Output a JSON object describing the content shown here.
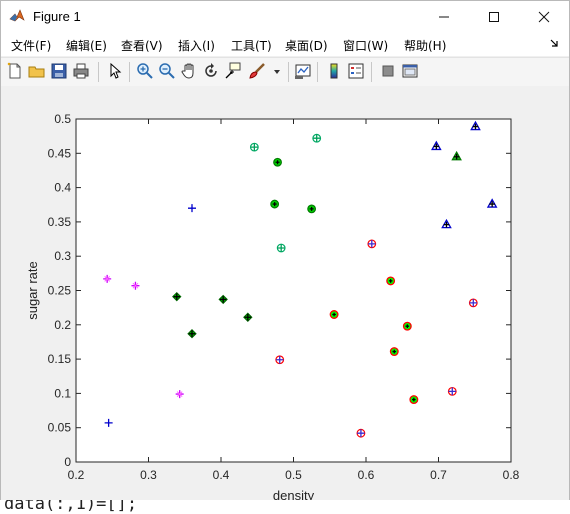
{
  "window": {
    "title": "Figure 1",
    "controls": {
      "minimize": "–",
      "maximize": "☐",
      "close": "✕"
    }
  },
  "menubar": {
    "items": [
      {
        "label": "文件(F)"
      },
      {
        "label": "编辑(E)"
      },
      {
        "label": "查看(V)"
      },
      {
        "label": "插入(I)"
      },
      {
        "label": "工具(T)"
      },
      {
        "label": "桌面(D)"
      },
      {
        "label": "窗口(W)"
      },
      {
        "label": "帮助(H)"
      }
    ],
    "overflow_icon": "arrow-icon"
  },
  "toolbar": {
    "buttons": [
      "new-figure-icon",
      "open-icon",
      "save-icon",
      "print-icon",
      "edit-plot-icon",
      "zoom-in-icon",
      "zoom-out-icon",
      "pan-icon",
      "rotate-icon",
      "data-cursor-icon",
      "brush-icon",
      "link-plot-icon",
      "colorbar-icon",
      "legend-icon",
      "hide-plot-tools-icon",
      "show-plot-tools-icon"
    ]
  },
  "chart_data": {
    "type": "scatter",
    "xlabel": "density",
    "ylabel": "sugar rate",
    "xlim": [
      0.2,
      0.8
    ],
    "ylim": [
      0,
      0.5
    ],
    "xticks": [
      "0.2",
      "0.3",
      "0.4",
      "0.5",
      "0.6",
      "0.7",
      "0.8"
    ],
    "yticks": [
      "0",
      "0.05",
      "0.1",
      "0.15",
      "0.2",
      "0.25",
      "0.3",
      "0.35",
      "0.4",
      "0.45",
      "0.5"
    ],
    "grid": false,
    "series": [
      {
        "marker": "circle-red-filled-green",
        "color": "#ff0000",
        "fill": "#00ff00",
        "points": [
          [
            0.556,
            0.215
          ],
          [
            0.634,
            0.264
          ],
          [
            0.639,
            0.161
          ],
          [
            0.657,
            0.198
          ],
          [
            0.666,
            0.091
          ]
        ]
      },
      {
        "marker": "circle-red-plus",
        "color": "#ff0000",
        "points": [
          [
            0.481,
            0.149
          ],
          [
            0.593,
            0.042
          ],
          [
            0.608,
            0.318
          ],
          [
            0.719,
            0.103
          ],
          [
            0.748,
            0.232
          ]
        ]
      },
      {
        "marker": "plus-magenta",
        "color": "#cc00ff",
        "points": [
          [
            0.243,
            0.267
          ],
          [
            0.282,
            0.257
          ],
          [
            0.343,
            0.099
          ]
        ]
      },
      {
        "marker": "plus-blue",
        "color": "#0000cc",
        "points": [
          [
            0.245,
            0.057
          ],
          [
            0.36,
            0.37
          ]
        ]
      },
      {
        "marker": "triangle-blue-plus",
        "color": "#0000cc",
        "points": [
          [
            0.697,
            0.46
          ],
          [
            0.711,
            0.346
          ],
          [
            0.751,
            0.489
          ],
          [
            0.774,
            0.376
          ]
        ]
      },
      {
        "marker": "triangle-green-plus-black",
        "color": "#007a00",
        "points": [
          [
            0.725,
            0.445
          ]
        ]
      },
      {
        "marker": "diamond-green-plus-black",
        "color": "#00aa00",
        "points": [
          [
            0.339,
            0.241
          ],
          [
            0.36,
            0.187
          ],
          [
            0.403,
            0.237
          ],
          [
            0.437,
            0.211
          ]
        ]
      },
      {
        "marker": "circle-green-filled",
        "color": "#007a00",
        "fill": "#00cc00",
        "points": [
          [
            0.478,
            0.437
          ],
          [
            0.474,
            0.376
          ],
          [
            0.525,
            0.369
          ]
        ]
      },
      {
        "marker": "circle-green-plus",
        "color": "#00aa66",
        "points": [
          [
            0.446,
            0.459
          ],
          [
            0.532,
            0.472
          ],
          [
            0.483,
            0.312
          ]
        ]
      }
    ]
  },
  "code_strip": {
    "text": "data(:,1)=[];"
  }
}
